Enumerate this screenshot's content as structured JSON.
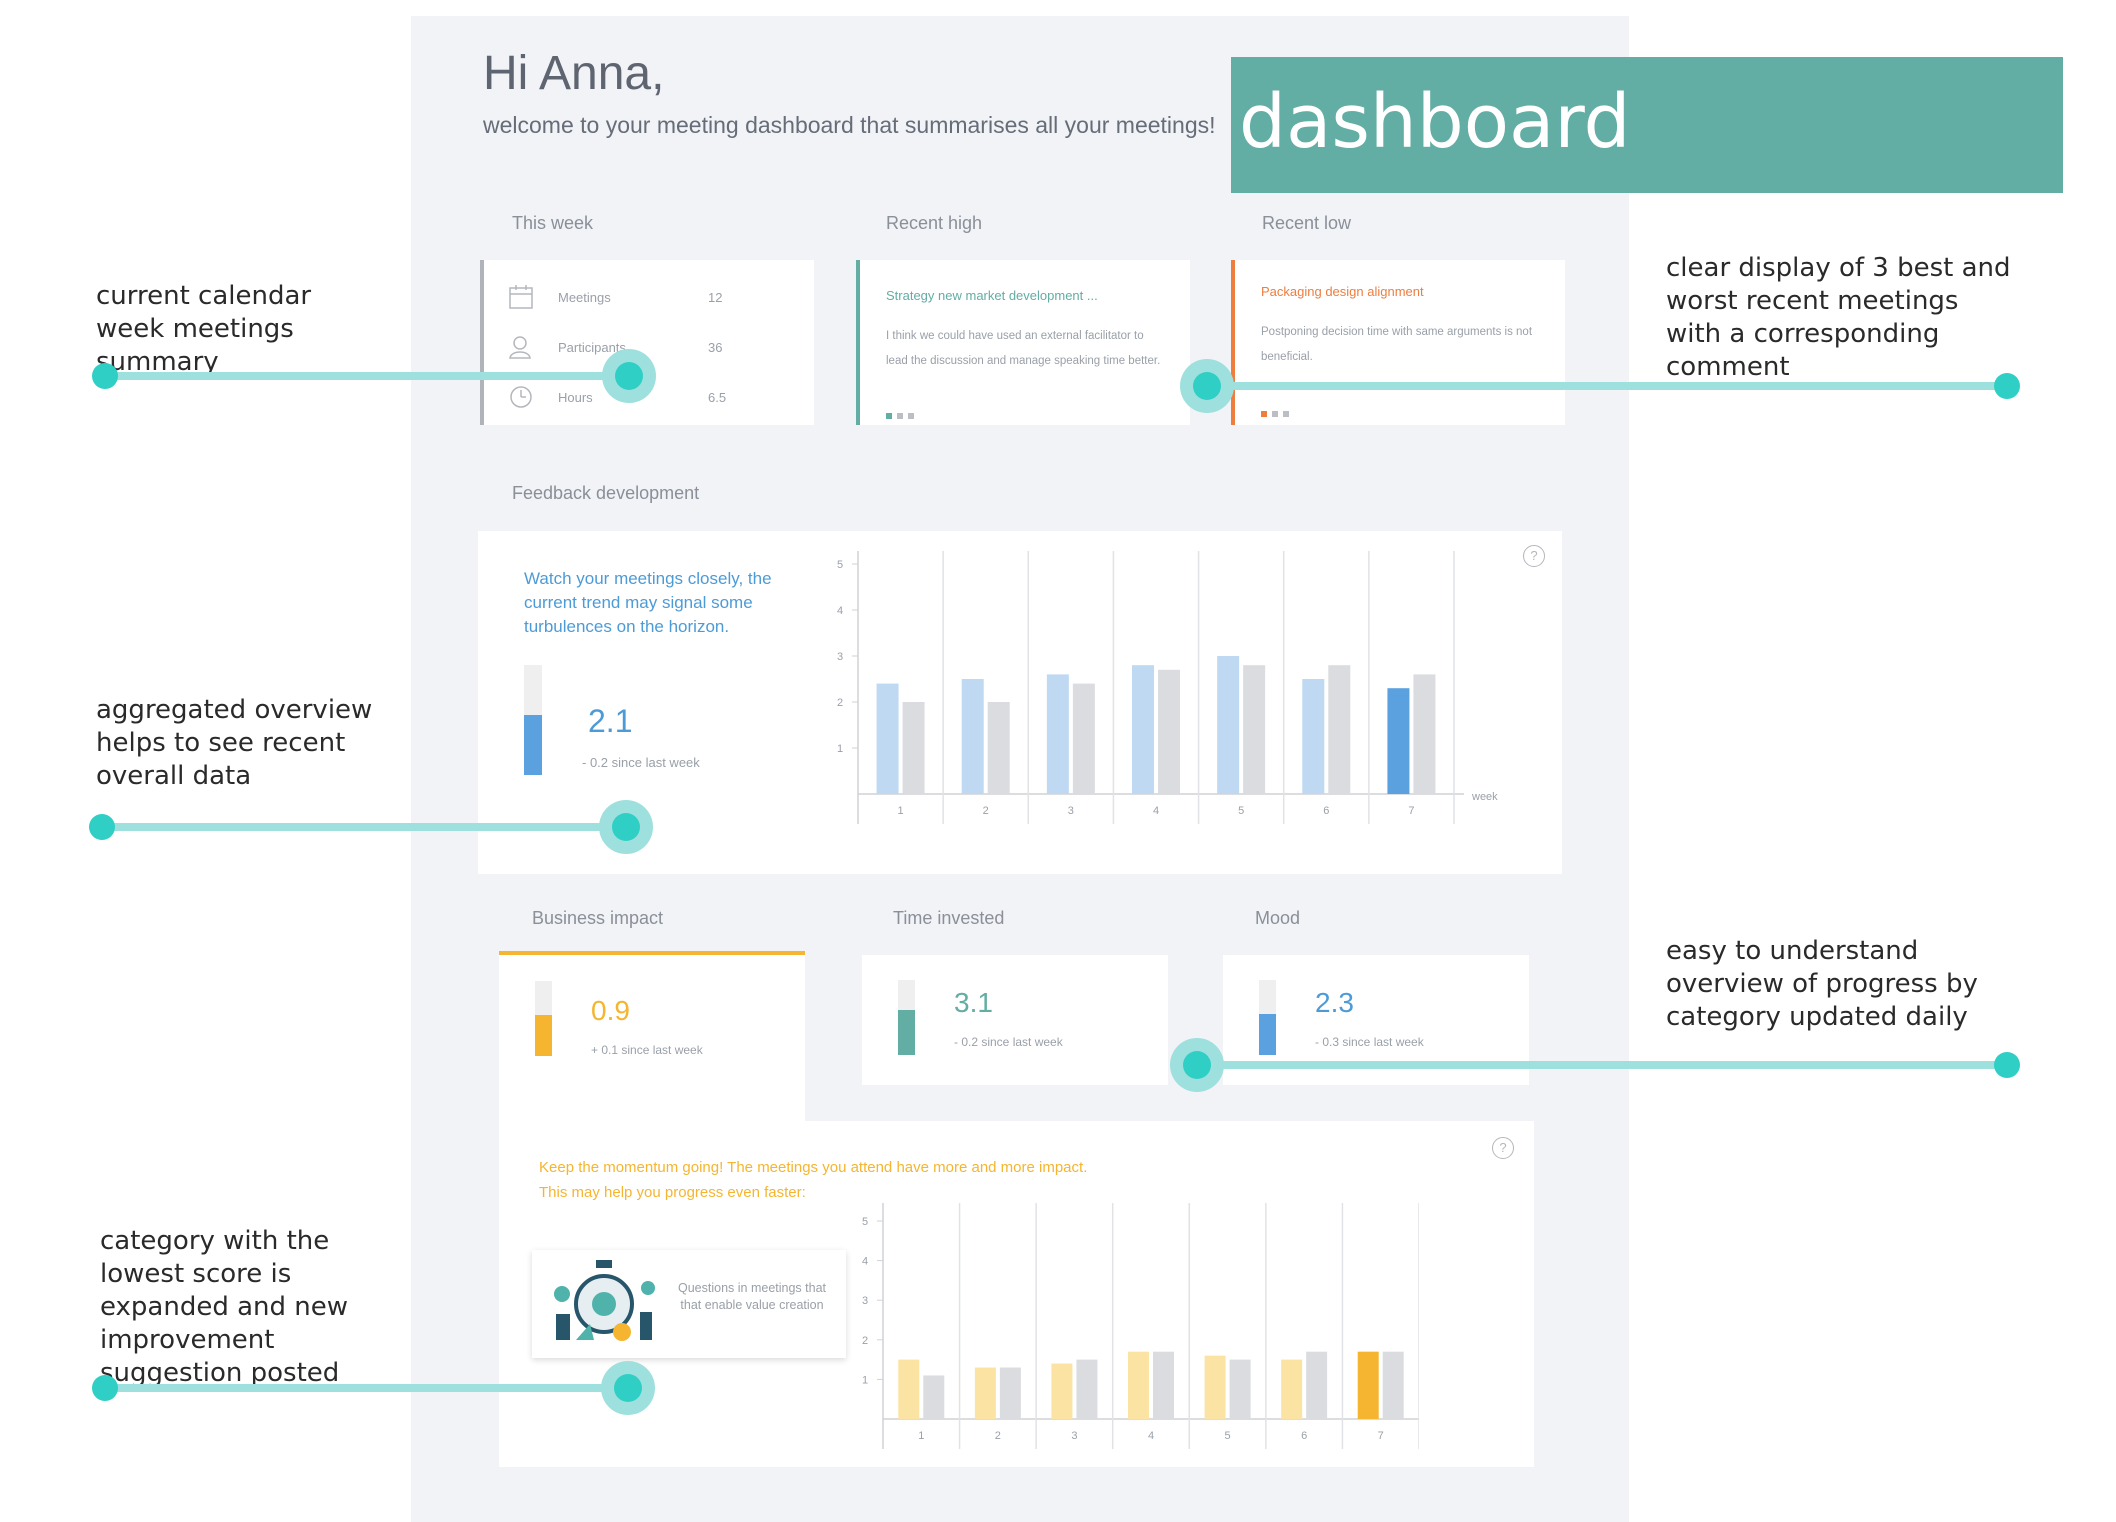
{
  "header": {
    "greeting": "Hi Anna,",
    "welcome": "welcome to your meeting dashboard that summarises all your meetings!",
    "banner_label": "dashboard"
  },
  "colors": {
    "teal": "#62ada4",
    "orange": "#ee7d3e",
    "blue": "#4d9bd6",
    "yellow": "#f5b530",
    "annotation": "#2fcfc6"
  },
  "summary": {
    "this_week": {
      "label": "This week",
      "rows": [
        {
          "icon": "calendar-icon",
          "label": "Meetings",
          "value": "12"
        },
        {
          "icon": "participants-icon",
          "label": "Participants",
          "value": "36"
        },
        {
          "icon": "clock-icon",
          "label": "Hours",
          "value": "6.5"
        }
      ]
    },
    "recent_high": {
      "label": "Recent high",
      "title": "Strategy new market development ...",
      "comment": "I think we could have used an external facilitator to lead the discussion and manage speaking time better."
    },
    "recent_low": {
      "label": "Recent low",
      "title": "Packaging design alignment",
      "comment": "Postponing decision time with same arguments is not beneficial."
    }
  },
  "feedback": {
    "label": "Feedback development",
    "message": "Watch your meetings closely, the current trend may signal some turbulences on the horizon.",
    "value": "2.1",
    "delta": "- 0.2 since last week",
    "level_fraction": 0.55
  },
  "categories": {
    "business_impact": {
      "label": "Business impact",
      "value": "0.9",
      "delta": "+ 0.1 since last week",
      "level_fraction": 0.55
    },
    "time_invested": {
      "label": "Time invested",
      "value": "3.1",
      "delta": "- 0.2 since last week",
      "level_fraction": 0.6
    },
    "mood": {
      "label": "Mood",
      "value": "2.3",
      "delta": "- 0.3 since last week",
      "level_fraction": 0.55
    }
  },
  "impact_detail": {
    "message_line1": "Keep the momentum going! The meetings you attend have more and more impact.",
    "message_line2": "This may help you progress even faster:",
    "suggestion": "Questions in meetings that that enable value creation"
  },
  "chart_data": [
    {
      "type": "bar",
      "categories": [
        "1",
        "2",
        "3",
        "4",
        "5",
        "6",
        "7"
      ],
      "xlabel": "week",
      "ylim": [
        0,
        5
      ],
      "yticks": [
        1,
        2,
        3,
        4,
        5
      ],
      "series": [
        {
          "values": [
            2.4,
            2.5,
            2.6,
            2.8,
            3.0,
            2.5,
            2.3
          ],
          "color": "#bed9f1",
          "highlight_color": "#5ba1e0"
        },
        {
          "values": [
            2.0,
            2.0,
            2.4,
            2.7,
            2.8,
            2.8,
            2.6
          ],
          "color": "#dadcdf"
        }
      ]
    },
    {
      "type": "bar",
      "categories": [
        "1",
        "2",
        "3",
        "4",
        "5",
        "6",
        "7"
      ],
      "xlabel": "week",
      "ylim": [
        0,
        5
      ],
      "yticks": [
        1,
        2,
        3,
        4,
        5
      ],
      "series": [
        {
          "values": [
            1.5,
            1.3,
            1.4,
            1.7,
            1.6,
            1.5,
            1.7
          ],
          "color": "#fbe3a3",
          "highlight_color": "#f5b530"
        },
        {
          "values": [
            1.1,
            1.3,
            1.5,
            1.7,
            1.5,
            1.7,
            1.7
          ],
          "color": "#dadcdf"
        }
      ]
    }
  ],
  "annotations": [
    {
      "key": "week",
      "text": "current calendar week meetings summary"
    },
    {
      "key": "best_worst",
      "text": "clear display of 3 best and worst recent meetings with a corresponding comment"
    },
    {
      "key": "aggregated",
      "text": "aggregated overview helps to see recent overall data"
    },
    {
      "key": "progress",
      "text": "easy to understand overview of progress by category updated daily"
    },
    {
      "key": "lowest",
      "text": "category with the lowest score is expanded and new improvement suggestion posted"
    }
  ]
}
